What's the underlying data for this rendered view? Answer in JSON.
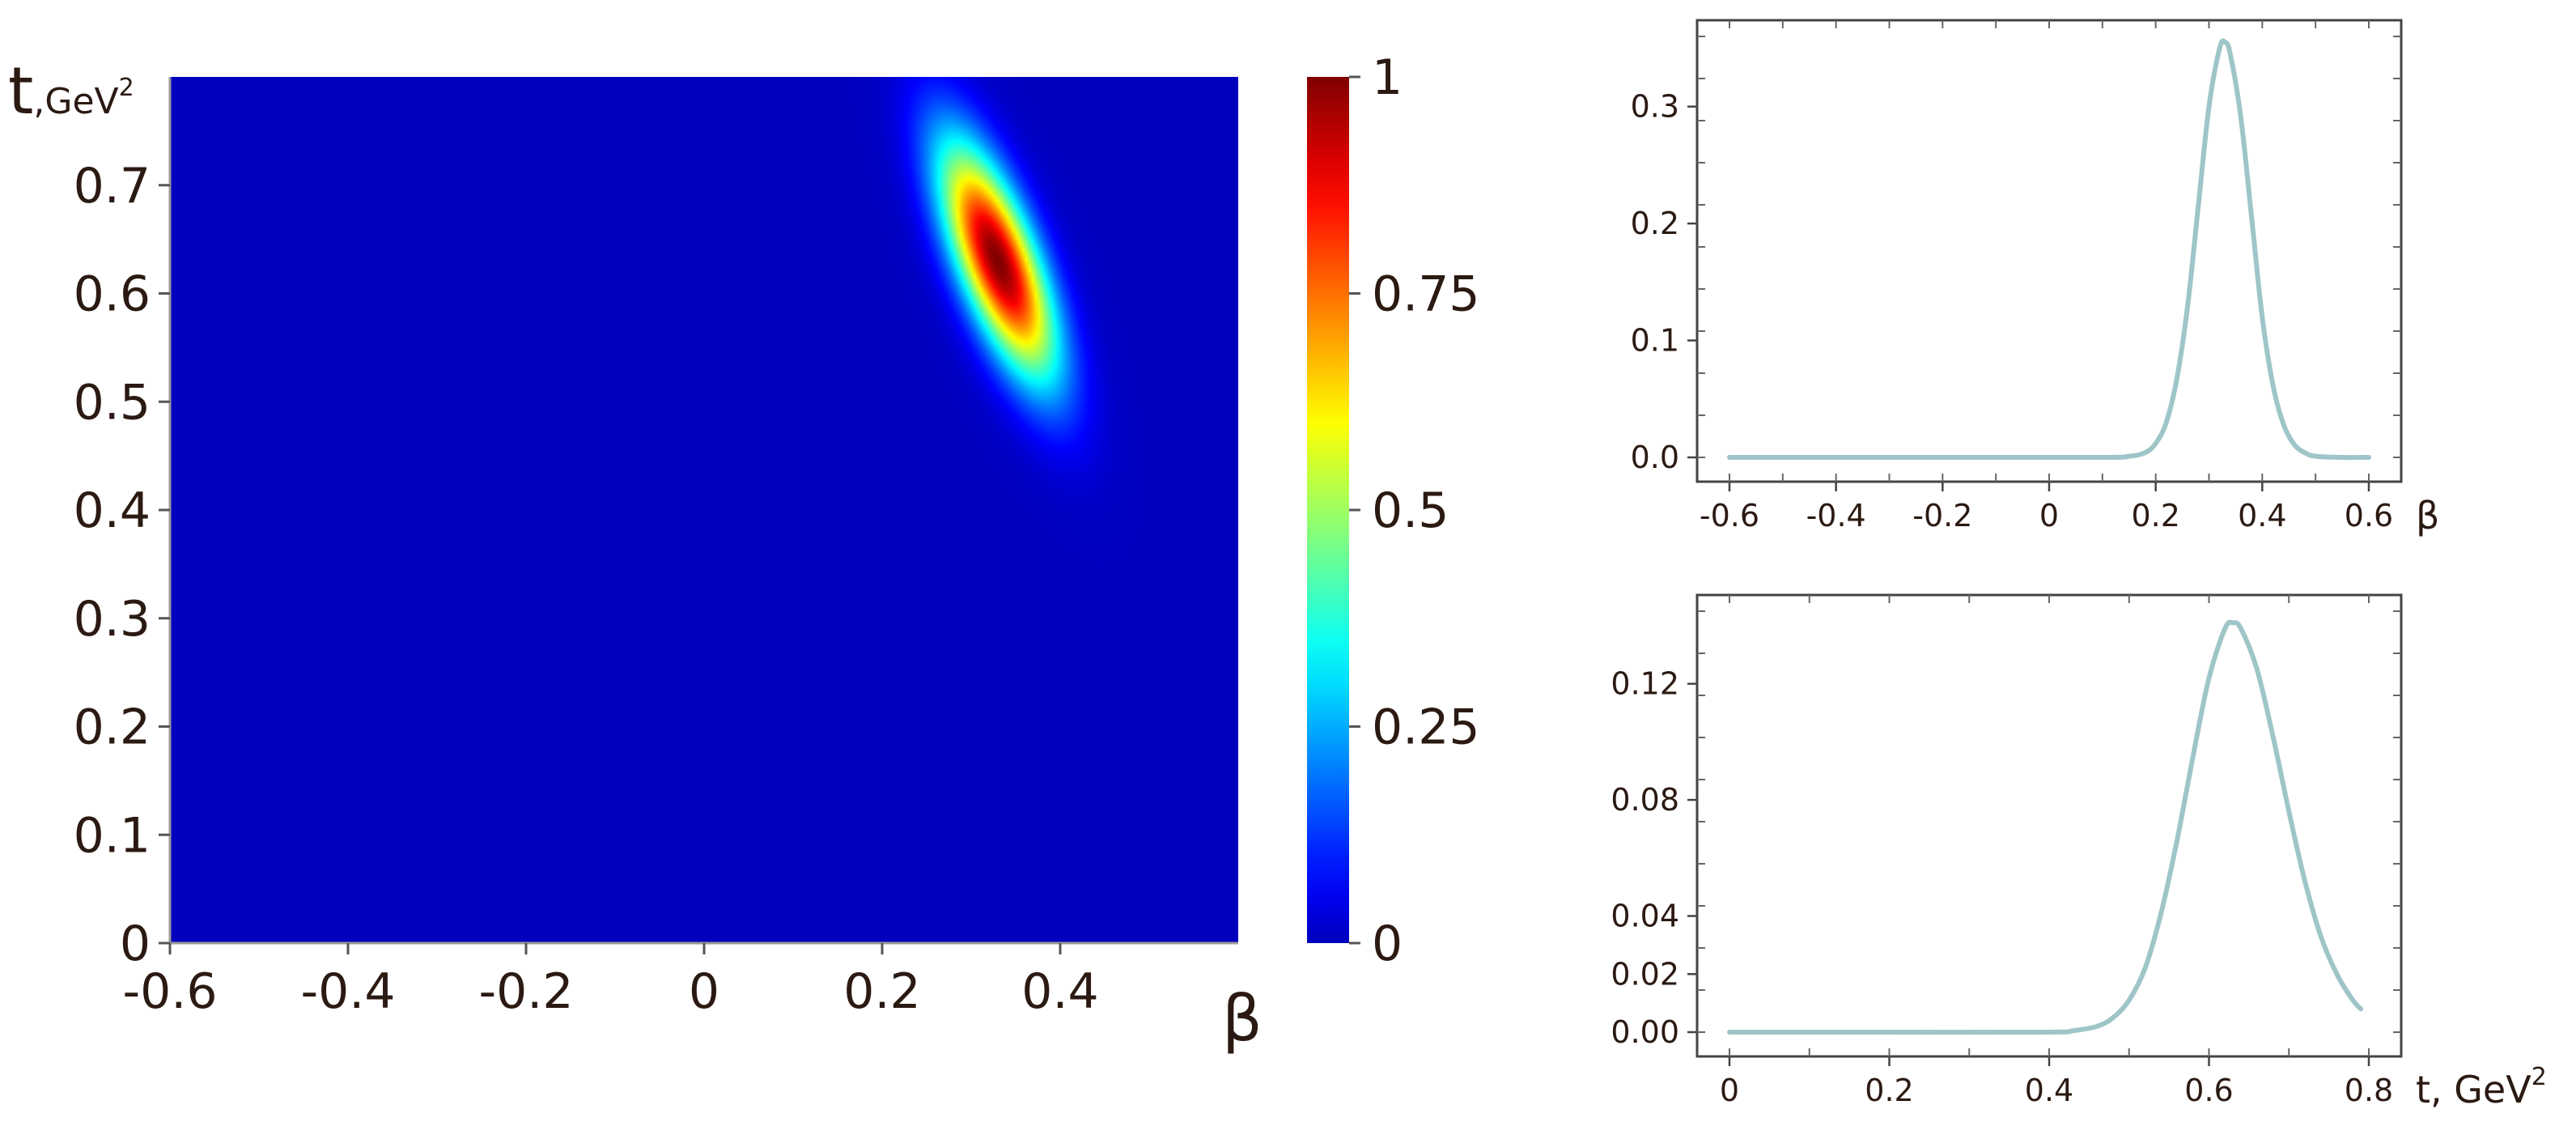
{
  "chart_data": [
    {
      "id": "heatmap",
      "type": "heatmap",
      "title": "",
      "xlabel": "β",
      "ylabel": "t",
      "ylabel_unit": ",GeV",
      "ylabel_sup": "2",
      "xlim": [
        -0.6,
        0.6
      ],
      "ylim": [
        0,
        0.8
      ],
      "xticks": [
        -0.6,
        -0.4,
        -0.2,
        0,
        0.2,
        0.4
      ],
      "xtick_labels": [
        "-0.6",
        "-0.4",
        "-0.2",
        "0",
        "0.2",
        "0.4"
      ],
      "yticks": [
        0,
        0.1,
        0.2,
        0.3,
        0.4,
        0.5,
        0.6,
        0.7
      ],
      "ytick_labels": [
        "0",
        "0.1",
        "0.2",
        "0.3",
        "0.4",
        "0.5",
        "0.6",
        "0.7"
      ],
      "peak": {
        "beta": 0.33,
        "t": 0.63,
        "value": 1
      },
      "spread": {
        "sigma_beta": 0.045,
        "sigma_t": 0.075,
        "correlation": -0.7
      },
      "colormap": "jet",
      "colorbar": {
        "range": [
          0,
          1
        ],
        "ticks": [
          0,
          0.25,
          0.5,
          0.75,
          1
        ],
        "tick_labels": [
          "0",
          "0.25",
          "0.5",
          "0.75",
          "1"
        ]
      },
      "grid": false
    },
    {
      "id": "beta_marginal",
      "type": "line",
      "title": "",
      "xlabel": "β",
      "ylabel": "",
      "xlim": [
        -0.6,
        0.6
      ],
      "ylim": [
        0,
        0.36
      ],
      "xticks": [
        -0.6,
        -0.4,
        -0.2,
        0,
        0.2,
        0.4,
        0.6
      ],
      "xtick_labels": [
        "-0.6",
        "-0.4",
        "-0.2",
        "0",
        "0.2",
        "0.4",
        "0.6"
      ],
      "yticks": [
        0,
        0.1,
        0.2,
        0.3
      ],
      "ytick_labels": [
        "0.0",
        "0.1",
        "0.2",
        "0.3"
      ],
      "line_color": "#9ec5c8",
      "series": [
        {
          "x": [
            -0.6,
            -0.2,
            0.1,
            0.15,
            0.18,
            0.2,
            0.22,
            0.24,
            0.26,
            0.28,
            0.3,
            0.32,
            0.33,
            0.34,
            0.36,
            0.38,
            0.4,
            0.42,
            0.44,
            0.46,
            0.48,
            0.5,
            0.55,
            0.6
          ],
          "y": [
            0,
            0,
            0,
            0.001,
            0.004,
            0.012,
            0.03,
            0.068,
            0.13,
            0.215,
            0.3,
            0.35,
            0.355,
            0.345,
            0.29,
            0.205,
            0.12,
            0.062,
            0.028,
            0.011,
            0.004,
            0.001,
            0,
            0
          ]
        }
      ],
      "grid": false
    },
    {
      "id": "t_marginal",
      "type": "line",
      "title": "",
      "xlabel": "t, GeV",
      "xlabel_sup": "2",
      "ylabel": "",
      "xlim": [
        0,
        0.8
      ],
      "ylim": [
        0,
        0.145
      ],
      "xticks": [
        0,
        0.2,
        0.4,
        0.6,
        0.8
      ],
      "xtick_labels": [
        "0",
        "0.2",
        "0.4",
        "0.6",
        "0.8"
      ],
      "yticks": [
        0,
        0.02,
        0.04,
        0.08,
        0.12
      ],
      "ytick_labels": [
        "0.00",
        "0.02",
        "0.04",
        "0.08",
        "0.12"
      ],
      "line_color": "#9ec5c8",
      "series": [
        {
          "x": [
            0,
            0.2,
            0.4,
            0.43,
            0.46,
            0.48,
            0.5,
            0.52,
            0.54,
            0.56,
            0.58,
            0.6,
            0.62,
            0.63,
            0.64,
            0.66,
            0.68,
            0.7,
            0.72,
            0.74,
            0.76,
            0.78,
            0.79
          ],
          "y": [
            0,
            0,
            0,
            0.0005,
            0.002,
            0.005,
            0.011,
            0.022,
            0.041,
            0.066,
            0.095,
            0.122,
            0.139,
            0.141,
            0.139,
            0.125,
            0.102,
            0.076,
            0.052,
            0.033,
            0.02,
            0.011,
            0.008
          ]
        }
      ],
      "grid": false
    }
  ]
}
